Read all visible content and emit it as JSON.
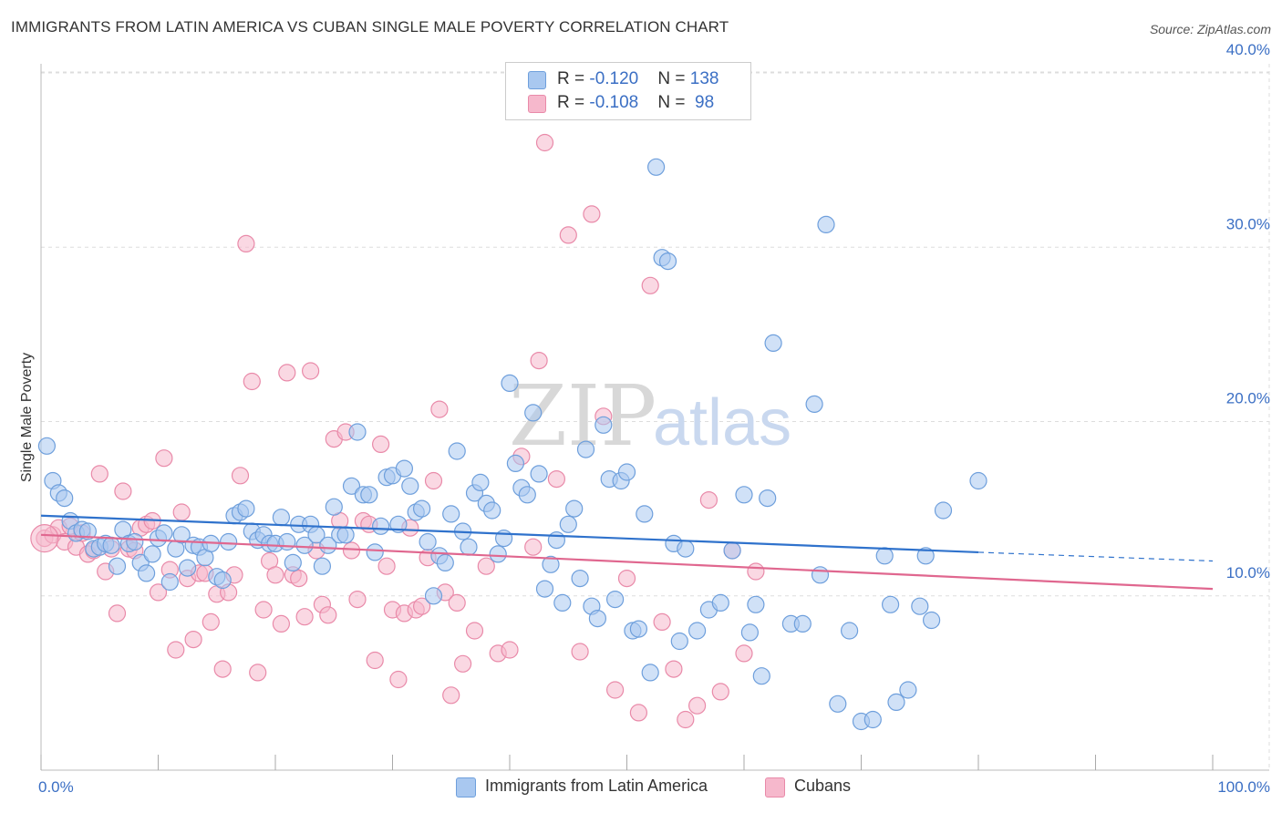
{
  "header": {
    "title": "IMMIGRANTS FROM LATIN AMERICA VS CUBAN SINGLE MALE POVERTY CORRELATION CHART",
    "source": "Source: ZipAtlas.com"
  },
  "legend": {
    "rows": [
      {
        "r_label": "R = ",
        "r_value": "-0.120",
        "n_label": "N = ",
        "n_value": "138"
      },
      {
        "r_label": "R = ",
        "r_value": "-0.108",
        "n_label": "N = ",
        "n_value": " 98"
      }
    ]
  },
  "bottom_legend": {
    "series1": "Immigrants from Latin America",
    "series2": "Cubans"
  },
  "watermark": {
    "zip": "ZIP",
    "atlas": "atlas"
  },
  "colors": {
    "blue_fill": "#a9c8f0",
    "blue_stroke": "#6e9fdc",
    "blue_line": "#2f72cc",
    "pink_fill": "#f6b8cc",
    "pink_stroke": "#e98aa9",
    "pink_line": "#e0678f",
    "tick_text": "#3b6fc4",
    "grid": "#dddddd"
  },
  "chart_data": {
    "type": "scatter",
    "title": "IMMIGRANTS FROM LATIN AMERICA VS CUBAN SINGLE MALE POVERTY CORRELATION CHART",
    "xlabel": "",
    "ylabel": "Single Male Poverty",
    "xlim": [
      0,
      100
    ],
    "ylim": [
      0,
      40
    ],
    "x_tick_labels": [
      "0.0%",
      "100.0%"
    ],
    "y_ticks": [
      10,
      20,
      30,
      40
    ],
    "y_tick_labels": [
      "10.0%",
      "20.0%",
      "30.0%",
      "40.0%"
    ],
    "grid": true,
    "legend_position": "top-center",
    "series": [
      {
        "name": "Immigrants from Latin America",
        "R": -0.12,
        "N": 138,
        "trend": {
          "x0": 0,
          "y0": 14.6,
          "x1": 80,
          "y1": 12.5,
          "dashed_to_x": 100,
          "dashed_to_y": 12.0
        },
        "points": [
          [
            0.5,
            18.6
          ],
          [
            1,
            16.6
          ],
          [
            1.5,
            15.9
          ],
          [
            2,
            15.6
          ],
          [
            2.5,
            14.3
          ],
          [
            3,
            13.6
          ],
          [
            3.5,
            13.8
          ],
          [
            4,
            13.7
          ],
          [
            4.5,
            12.7
          ],
          [
            5,
            12.8
          ],
          [
            5.5,
            13.0
          ],
          [
            6,
            12.9
          ],
          [
            6.5,
            11.7
          ],
          [
            7,
            13.8
          ],
          [
            7.5,
            13.0
          ],
          [
            8,
            13.1
          ],
          [
            8.5,
            11.9
          ],
          [
            9,
            11.3
          ],
          [
            9.5,
            12.4
          ],
          [
            10,
            13.3
          ],
          [
            10.5,
            13.6
          ],
          [
            11,
            10.8
          ],
          [
            11.5,
            12.7
          ],
          [
            12,
            13.5
          ],
          [
            12.5,
            11.6
          ],
          [
            13,
            12.9
          ],
          [
            13.5,
            12.8
          ],
          [
            14,
            12.2
          ],
          [
            14.5,
            13.0
          ],
          [
            15,
            11.1
          ],
          [
            15.5,
            10.9
          ],
          [
            16,
            13.1
          ],
          [
            16.5,
            14.6
          ],
          [
            17,
            14.8
          ],
          [
            17.5,
            15.0
          ],
          [
            18,
            13.7
          ],
          [
            18.5,
            13.2
          ],
          [
            19,
            13.5
          ],
          [
            19.5,
            13.0
          ],
          [
            20,
            13.0
          ],
          [
            20.5,
            14.5
          ],
          [
            21,
            13.1
          ],
          [
            21.5,
            11.9
          ],
          [
            22,
            14.1
          ],
          [
            22.5,
            12.9
          ],
          [
            23,
            14.1
          ],
          [
            23.5,
            13.5
          ],
          [
            24,
            11.7
          ],
          [
            24.5,
            12.9
          ],
          [
            25,
            15.1
          ],
          [
            25.5,
            13.5
          ],
          [
            26,
            13.5
          ],
          [
            26.5,
            16.3
          ],
          [
            27,
            19.4
          ],
          [
            27.5,
            15.8
          ],
          [
            28,
            15.8
          ],
          [
            28.5,
            12.5
          ],
          [
            29,
            14.0
          ],
          [
            29.5,
            16.8
          ],
          [
            30,
            16.9
          ],
          [
            30.5,
            14.1
          ],
          [
            31,
            17.3
          ],
          [
            31.5,
            16.3
          ],
          [
            32,
            14.8
          ],
          [
            32.5,
            15.0
          ],
          [
            33,
            13.1
          ],
          [
            33.5,
            10.0
          ],
          [
            34,
            12.3
          ],
          [
            34.5,
            11.9
          ],
          [
            35,
            14.7
          ],
          [
            35.5,
            18.3
          ],
          [
            36,
            13.7
          ],
          [
            36.5,
            12.8
          ],
          [
            37,
            15.9
          ],
          [
            37.5,
            16.5
          ],
          [
            38,
            15.3
          ],
          [
            38.5,
            14.9
          ],
          [
            39,
            12.4
          ],
          [
            39.5,
            13.3
          ],
          [
            40,
            22.2
          ],
          [
            40.5,
            17.6
          ],
          [
            41,
            16.2
          ],
          [
            41.5,
            15.8
          ],
          [
            42,
            20.5
          ],
          [
            42.5,
            17.0
          ],
          [
            43,
            10.4
          ],
          [
            43.5,
            11.8
          ],
          [
            44,
            13.2
          ],
          [
            44.5,
            9.6
          ],
          [
            45,
            14.1
          ],
          [
            45.5,
            15.0
          ],
          [
            46,
            11.0
          ],
          [
            46.5,
            18.4
          ],
          [
            47,
            9.4
          ],
          [
            47.5,
            8.7
          ],
          [
            48,
            19.8
          ],
          [
            48.5,
            16.7
          ],
          [
            49,
            9.8
          ],
          [
            49.5,
            16.6
          ],
          [
            50,
            17.1
          ],
          [
            50.5,
            8.0
          ],
          [
            51,
            8.1
          ],
          [
            51.5,
            14.7
          ],
          [
            52,
            5.6
          ],
          [
            52.5,
            34.6
          ],
          [
            53,
            29.4
          ],
          [
            53.5,
            29.2
          ],
          [
            54,
            13.0
          ],
          [
            54.5,
            7.4
          ],
          [
            55,
            12.7
          ],
          [
            56,
            8.0
          ],
          [
            57,
            9.2
          ],
          [
            58,
            9.6
          ],
          [
            59,
            12.6
          ],
          [
            60,
            15.8
          ],
          [
            60.5,
            7.9
          ],
          [
            61,
            9.5
          ],
          [
            61.5,
            5.4
          ],
          [
            62,
            15.6
          ],
          [
            62.5,
            24.5
          ],
          [
            64,
            8.4
          ],
          [
            65,
            8.4
          ],
          [
            66,
            21.0
          ],
          [
            66.5,
            11.2
          ],
          [
            67,
            31.3
          ],
          [
            68,
            3.8
          ],
          [
            69,
            8.0
          ],
          [
            70,
            2.8
          ],
          [
            71,
            2.9
          ],
          [
            72,
            12.3
          ],
          [
            72.5,
            9.5
          ],
          [
            73,
            3.9
          ],
          [
            74,
            4.6
          ],
          [
            75,
            9.4
          ],
          [
            75.5,
            12.3
          ],
          [
            76,
            8.6
          ],
          [
            77,
            14.9
          ],
          [
            80,
            16.6
          ]
        ]
      },
      {
        "name": "Cubans",
        "R": -0.108,
        "N": 98,
        "trend": {
          "x0": 0,
          "y0": 13.5,
          "x1": 100,
          "y1": 10.4
        },
        "points": [
          [
            0.3,
            13.3
          ],
          [
            1,
            13.5
          ],
          [
            1.5,
            13.9
          ],
          [
            2,
            13.1
          ],
          [
            2.5,
            14.0
          ],
          [
            3,
            12.8
          ],
          [
            3.5,
            13.6
          ],
          [
            4,
            12.4
          ],
          [
            4.5,
            12.6
          ],
          [
            5,
            17.0
          ],
          [
            5.5,
            11.4
          ],
          [
            6,
            12.7
          ],
          [
            6.5,
            9.0
          ],
          [
            7,
            16.0
          ],
          [
            7.5,
            12.7
          ],
          [
            8,
            12.6
          ],
          [
            8.5,
            13.9
          ],
          [
            9,
            14.1
          ],
          [
            9.5,
            14.3
          ],
          [
            10,
            10.2
          ],
          [
            10.5,
            17.9
          ],
          [
            11,
            11.5
          ],
          [
            11.5,
            6.9
          ],
          [
            12,
            14.8
          ],
          [
            12.5,
            11.0
          ],
          [
            13,
            7.5
          ],
          [
            13.5,
            11.3
          ],
          [
            14,
            11.3
          ],
          [
            14.5,
            8.5
          ],
          [
            15,
            10.1
          ],
          [
            15.5,
            5.8
          ],
          [
            16,
            10.2
          ],
          [
            16.5,
            11.2
          ],
          [
            17,
            16.9
          ],
          [
            17.5,
            30.2
          ],
          [
            18,
            22.3
          ],
          [
            18.5,
            5.6
          ],
          [
            19,
            9.2
          ],
          [
            19.5,
            12.0
          ],
          [
            20,
            11.2
          ],
          [
            20.5,
            8.4
          ],
          [
            21,
            22.8
          ],
          [
            21.5,
            11.2
          ],
          [
            22,
            11.0
          ],
          [
            22.5,
            8.8
          ],
          [
            23,
            22.9
          ],
          [
            23.5,
            12.6
          ],
          [
            24,
            9.5
          ],
          [
            24.5,
            8.9
          ],
          [
            25,
            19.0
          ],
          [
            25.5,
            14.3
          ],
          [
            26,
            19.4
          ],
          [
            26.5,
            12.6
          ],
          [
            27,
            9.8
          ],
          [
            27.5,
            14.3
          ],
          [
            28,
            14.1
          ],
          [
            28.5,
            6.3
          ],
          [
            29,
            18.7
          ],
          [
            29.5,
            11.7
          ],
          [
            30,
            9.2
          ],
          [
            30.5,
            5.2
          ],
          [
            31,
            9.0
          ],
          [
            31.5,
            13.9
          ],
          [
            32,
            9.2
          ],
          [
            32.5,
            9.4
          ],
          [
            33,
            12.2
          ],
          [
            33.5,
            16.6
          ],
          [
            34,
            20.7
          ],
          [
            34.5,
            10.2
          ],
          [
            35,
            4.3
          ],
          [
            35.5,
            9.6
          ],
          [
            36,
            6.1
          ],
          [
            37,
            8.0
          ],
          [
            38,
            11.7
          ],
          [
            39,
            6.7
          ],
          [
            40,
            6.9
          ],
          [
            41,
            18.0
          ],
          [
            42,
            12.8
          ],
          [
            42.5,
            23.5
          ],
          [
            43,
            36.0
          ],
          [
            44,
            16.7
          ],
          [
            45,
            30.7
          ],
          [
            46,
            6.8
          ],
          [
            47,
            31.9
          ],
          [
            48,
            20.3
          ],
          [
            49,
            4.6
          ],
          [
            50,
            11.0
          ],
          [
            51,
            3.3
          ],
          [
            52,
            27.8
          ],
          [
            53,
            8.5
          ],
          [
            54,
            5.8
          ],
          [
            55,
            2.9
          ],
          [
            56,
            3.7
          ],
          [
            57,
            15.5
          ],
          [
            58,
            4.5
          ],
          [
            59,
            12.6
          ],
          [
            60,
            6.7
          ],
          [
            61,
            11.4
          ]
        ]
      }
    ]
  }
}
